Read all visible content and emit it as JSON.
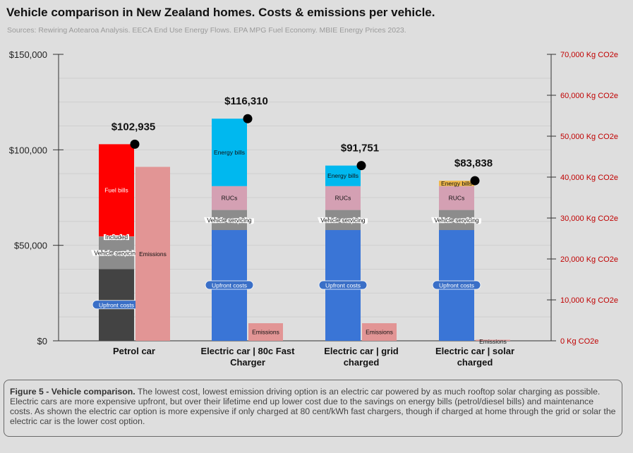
{
  "title": "Vehicle comparison in New Zealand homes. Costs & emissions per vehicle.",
  "subtitle": "Sources: Rewiring Aotearoa Analysis. EECA End Use Energy Flows. EPA MPG Fuel Economy. MBIE Energy Prices 2023.",
  "caption": {
    "bold": "Figure 5 - Vehicle comparison.",
    "text": " The lowest cost, lowest emission driving option is an electric car powered by as much rooftop solar charging as possible. Electric cars are more expensive upfront, but over their lifetime end up lower cost due to the savings on energy bills (petrol/diesel bills) and maintenance costs. As shown the electric car option is more expensive if only charged at 80 cent/kWh fast chargers, though if charged at home through the grid or solar the electric car is the lower cost option."
  },
  "chart_data": {
    "type": "bar",
    "stacked": true,
    "categories": [
      "Petrol car",
      "Electric car | 80c Fast Charger",
      "Electric car | grid charged",
      "Electric car | solar charged"
    ],
    "category_lines": [
      [
        "Petrol car"
      ],
      [
        "Electric car | 80c Fast",
        "Charger"
      ],
      [
        "Electric car | grid",
        "charged"
      ],
      [
        "Electric car | solar",
        "charged"
      ]
    ],
    "cost_series": [
      {
        "name": "Upfront costs",
        "values": [
          37500,
          58000,
          58000,
          58000
        ],
        "colors": [
          "#434343",
          "#3a75d6",
          "#3a75d6",
          "#3a75d6"
        ],
        "label_style": "pill-dark"
      },
      {
        "name": "Vehicle servicing",
        "values": [
          17000,
          10500,
          10500,
          10500
        ],
        "colors": [
          "#8c8c8c",
          "#8c8c8c",
          "#8c8c8c",
          "#8c8c8c"
        ],
        "label_style": "outline"
      },
      {
        "name": "Included",
        "values": [
          200,
          0,
          0,
          0
        ],
        "colors": [
          "#d9a0a0",
          "#d9a0a0",
          "#d9a0a0",
          "#d9a0a0"
        ],
        "label_style": "outline"
      },
      {
        "name": "RUCs",
        "values": [
          0,
          12500,
          12500,
          12500
        ],
        "colors": [
          "#d4a0b3",
          "#d4a0b3",
          "#d4a0b3",
          "#d4a0b3"
        ],
        "label_style": "plain"
      },
      {
        "name": "Fuel bills",
        "values": [
          48235,
          0,
          0,
          0
        ],
        "colors": [
          "#ff0000",
          "#ff0000",
          "#ff0000",
          "#ff0000"
        ],
        "label_style": "white"
      },
      {
        "name": "Energy bills",
        "values": [
          0,
          35310,
          10751,
          2838
        ],
        "colors": [
          "#00b8ef",
          "#00b8ef",
          "#00b8ef",
          "#f0b84c"
        ],
        "label_style": "plain"
      }
    ],
    "totals": [
      102935,
      116310,
      91751,
      83838
    ],
    "total_labels": [
      "$102,935",
      "$116,310",
      "$91,751",
      "$83,838"
    ],
    "emissions": {
      "name": "Emissions",
      "values": [
        42500,
        4300,
        4300,
        150
      ],
      "color": "#e29595"
    },
    "y_left": {
      "min": 0,
      "max": 150000,
      "ticks": [
        0,
        50000,
        100000,
        150000
      ],
      "tick_labels": [
        "$0",
        "$50,000",
        "$100,000",
        "$150,000"
      ]
    },
    "y_right": {
      "min": 0,
      "max": 70000,
      "ticks": [
        0,
        10000,
        20000,
        30000,
        40000,
        50000,
        60000,
        70000
      ],
      "tick_labels": [
        "0 Kg CO2e",
        "10,000 Kg CO2e",
        "20,000 Kg CO2e",
        "30,000 Kg CO2e",
        "40,000 Kg CO2e",
        "50,000 Kg CO2e",
        "60,000 Kg CO2e",
        "70,000 Kg CO2e"
      ],
      "color": "#c00000"
    },
    "grid": true
  }
}
